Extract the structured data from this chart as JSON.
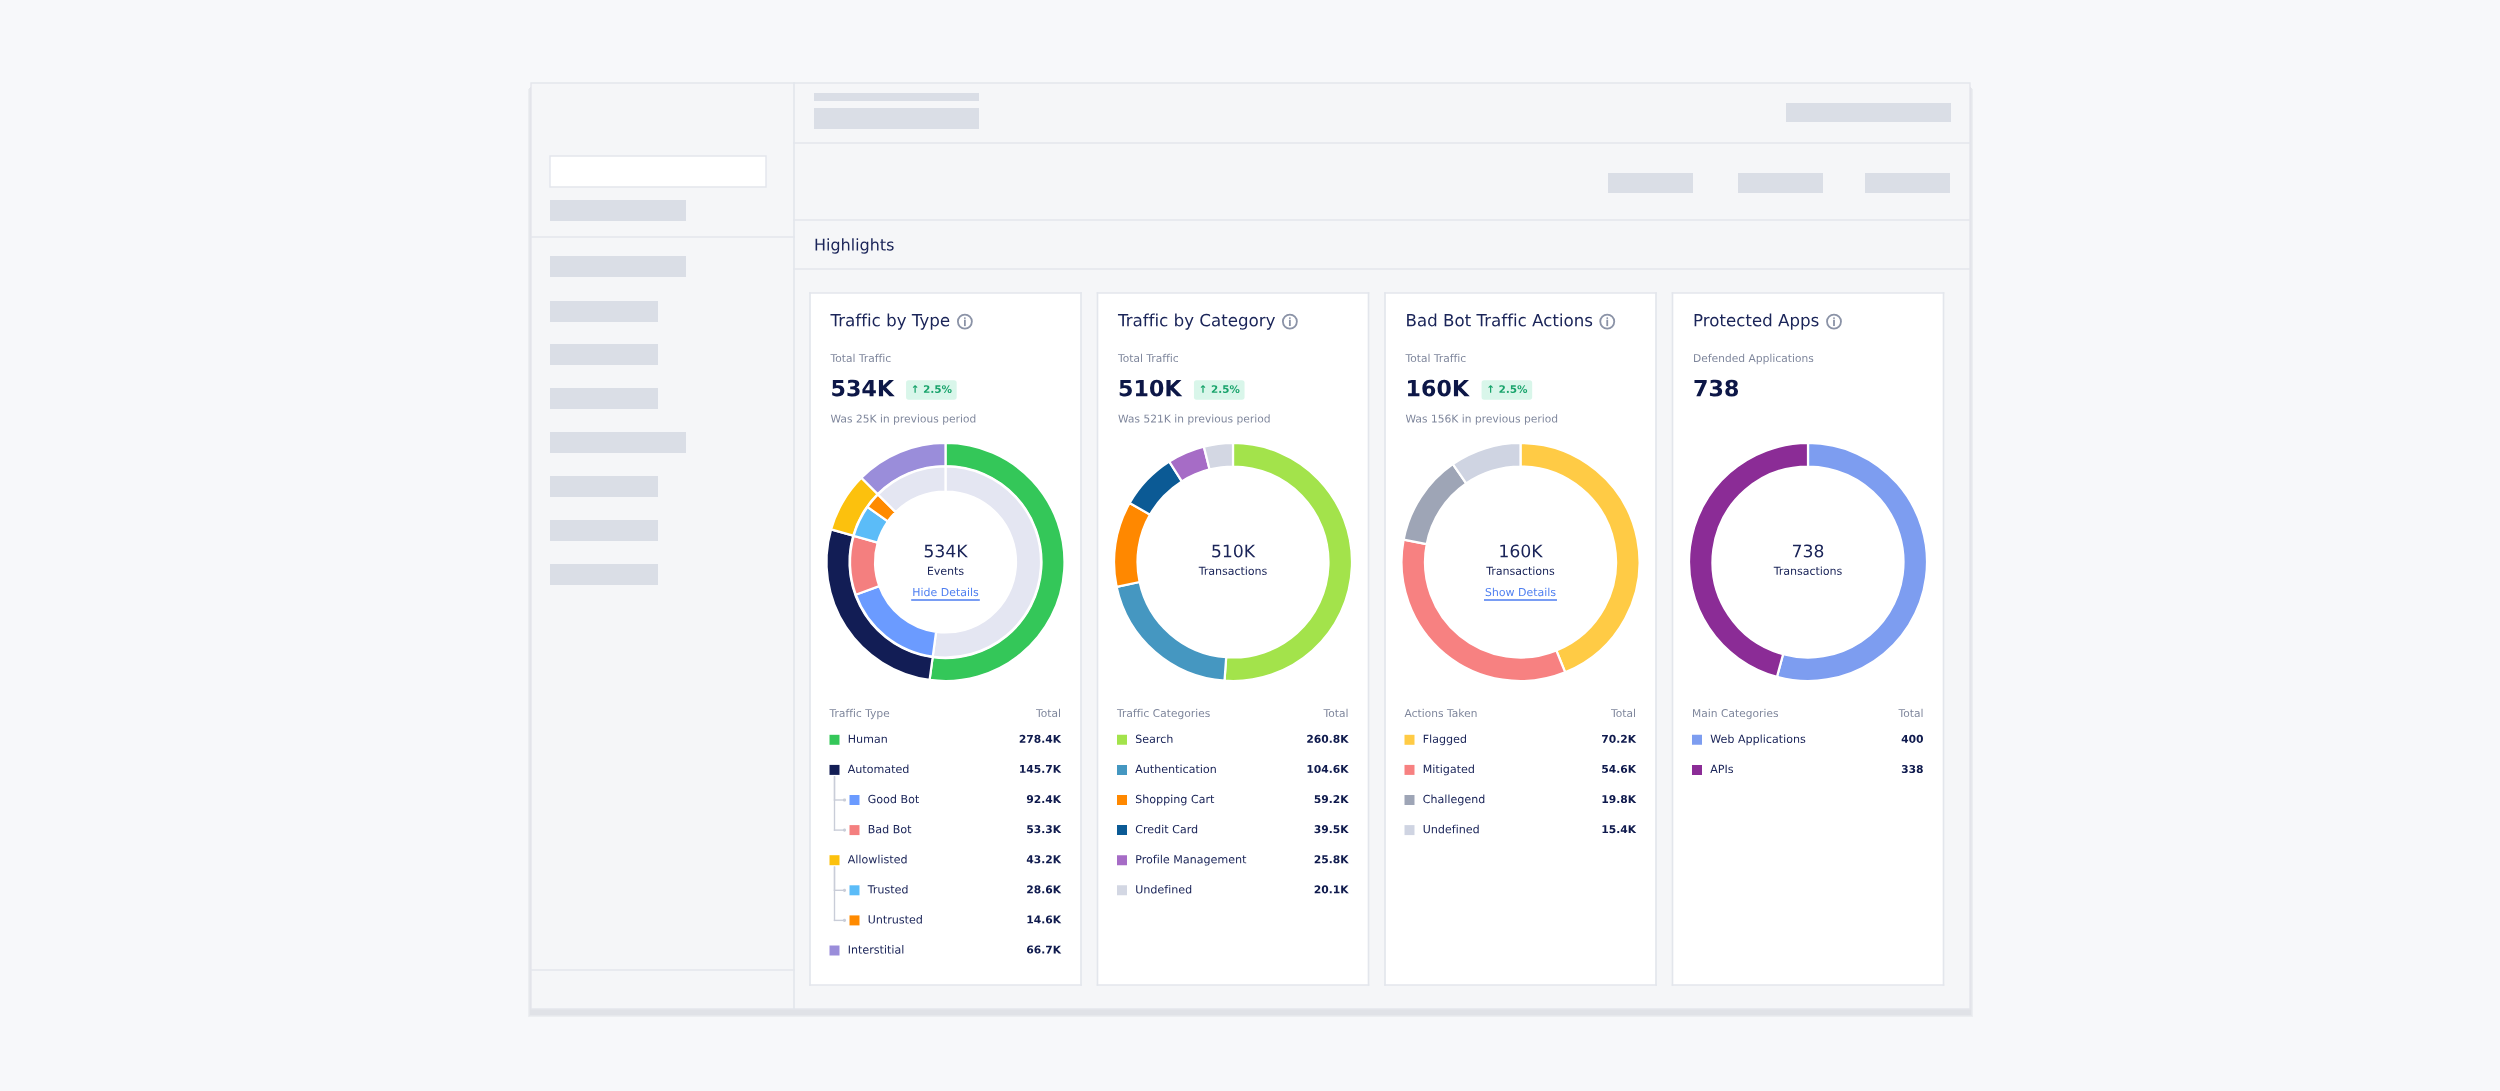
{
  "chart_data": [
    {
      "type": "donut",
      "title": "Traffic by Type",
      "subtitle": "Total Traffic",
      "legend_title": "Traffic Type",
      "legend": "bottom",
      "categories": [
        "Human",
        "Automated",
        "Good Bot",
        "Bad Bot",
        "Allowlisted",
        "Trusted",
        "Untrusted",
        "Interstitial"
      ],
      "colors": [
        "#34c759",
        "#121d55",
        "#6b9bff",
        "#f47f7f",
        "#fcc10d",
        "#5bbcf8",
        "#ff8a00",
        "#9a8dda"
      ],
      "series": [
        {
          "values": [
            278.4,
            145.7,
            null,
            null,
            43.2,
            null,
            null,
            66.7
          ],
          "value_labels": [
            "278.4K",
            "145.7K",
            null,
            null,
            "43.2K",
            null,
            null,
            "66.7K"
          ]
        },
        {
          "values": [
            278.4,
            null,
            92.4,
            53.3,
            null,
            28.6,
            14.6,
            66.7
          ],
          "colors": [
            "#e4e6f2",
            null,
            "#6b9bff",
            "#f47f7f",
            null,
            "#5bbcf8",
            "#ff8a00",
            "#e4e6f2"
          ],
          "value_labels": [
            null,
            null,
            "92.4K",
            "53.3K",
            null,
            "28.6K",
            "14.6K",
            null
          ]
        }
      ],
      "annotations": [
        "534K",
        "534K",
        "Events",
        "Total",
        "↑ 2.5%",
        "Was 25K in previous period",
        "Hide Details",
        "Highlights"
      ]
    },
    {
      "type": "donut",
      "title": "Traffic by Category",
      "subtitle": "Total Traffic",
      "legend_title": "Traffic Categories",
      "legend": "bottom",
      "categories": [
        "Search",
        "Authentication",
        "Shopping Cart",
        "Credit Card",
        "Profile Management",
        "Undefined"
      ],
      "values": [
        260.8,
        104.6,
        59.2,
        39.5,
        25.8,
        20.1
      ],
      "value_labels": [
        "260.8K",
        "104.6K",
        "59.2K",
        "39.5K",
        "25.8K",
        "20.1K"
      ],
      "colors": [
        "#a3e34b",
        "#4597c1",
        "#ff8800",
        "#0b5a95",
        "#a66cc6",
        "#d3d7e3"
      ],
      "annotations": [
        "510K",
        "510K",
        "Transactions",
        "Total",
        "↑ 2.5%",
        "Was 521K in previous period"
      ]
    },
    {
      "type": "donut",
      "title": "Bad Bot Traffic Actions",
      "subtitle": "Total Traffic",
      "legend_title": "Actions Taken",
      "legend": "bottom",
      "categories": [
        "Flagged",
        "Mitigated",
        "Challegend",
        "Undefined"
      ],
      "values": [
        70.2,
        54.6,
        19.8,
        15.4
      ],
      "value_labels": [
        "70.2K",
        "54.6K",
        "19.8K",
        "15.4K"
      ],
      "colors": [
        "#ffcb45",
        "#f78181",
        "#9ea5b6",
        "#cfd4e2"
      ],
      "annotations": [
        "160K",
        "160K",
        "Transactions",
        "Total",
        "↑ 2.5%",
        "Was 156K in previous period",
        "Show Details"
      ]
    },
    {
      "type": "donut",
      "title": "Protected Apps",
      "subtitle": "Defended Applications",
      "legend_title": "Main Categories",
      "legend": "bottom",
      "categories": [
        "Web Applications",
        "APIs"
      ],
      "values": [
        400,
        338
      ],
      "value_labels": [
        "400",
        "338"
      ],
      "colors": [
        "#7d9df0",
        "#8b2c96"
      ],
      "annotations": [
        "738",
        "738",
        "Transactions",
        "Total"
      ]
    }
  ]
}
